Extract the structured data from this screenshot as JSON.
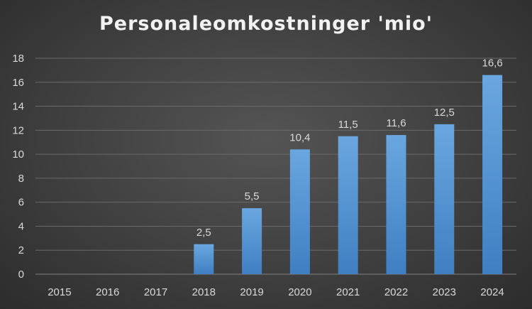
{
  "chart_data": {
    "type": "bar",
    "title": "Personaleomkostninger 'mio'",
    "categories": [
      "2015",
      "2016",
      "2017",
      "2018",
      "2019",
      "2020",
      "2021",
      "2022",
      "2023",
      "2024"
    ],
    "values": [
      0,
      0,
      0,
      2.5,
      5.5,
      10.4,
      11.5,
      11.6,
      12.5,
      16.6
    ],
    "data_labels": [
      "",
      "",
      "",
      "2,5",
      "5,5",
      "10,4",
      "11,5",
      "11,6",
      "12,5",
      "16,6"
    ],
    "y_ticks": [
      0,
      2,
      4,
      6,
      8,
      10,
      12,
      14,
      16,
      18
    ],
    "ylim": [
      0,
      18
    ],
    "grid": true,
    "legend": false,
    "bar_color": "#5b9bd5",
    "background_color": "#404040"
  }
}
